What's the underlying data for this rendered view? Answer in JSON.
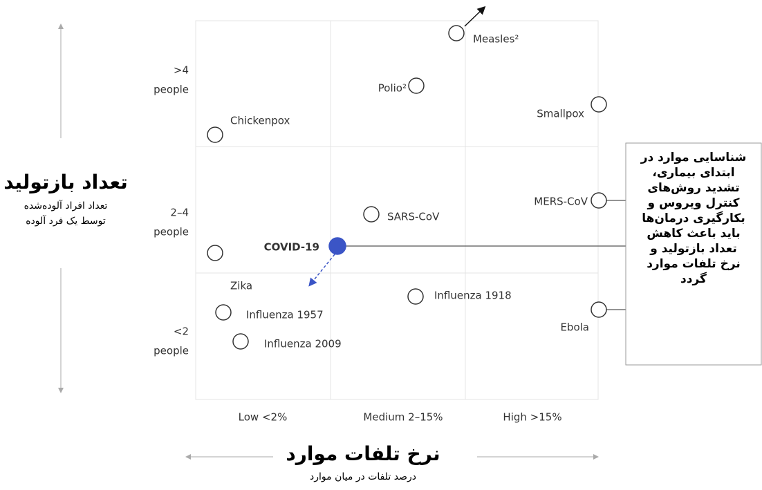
{
  "y_axis": {
    "title": "تعداد بازتولید",
    "subtitle_lines": [
      "تعداد افراد آلوده‌شده",
      "توسط یک فرد آلوده"
    ],
    "levels": [
      {
        "value": ">4",
        "unit": "people"
      },
      {
        "value": "2–4",
        "unit": "people"
      },
      {
        "value": "<2",
        "unit": "people"
      }
    ]
  },
  "x_axis": {
    "title": "نرخ تلفات موارد",
    "subtitle": "درصد تلفات در میان موارد",
    "levels": [
      "Low <2%",
      "Medium 2–15%",
      "High >15%"
    ]
  },
  "diseases": [
    "Measles²",
    "Polio²",
    "Smallpox",
    "Chickenpox",
    "MERS-CoV",
    "SARS-CoV",
    "COVID-19",
    "Zika",
    "Influenza 1918",
    "Influenza 1957",
    "Influenza 2009",
    "Ebola"
  ],
  "callout_lines": [
    "شناسایی موارد در",
    "ابتدای بیماری،",
    "تشدید روش‌های",
    "کنترل ویروس و",
    "بکارگیری درمان‌ها",
    "باید باعث کاهش",
    "تعداد بازتولید و",
    "نرخ تلفات موارد",
    "گردد"
  ]
}
